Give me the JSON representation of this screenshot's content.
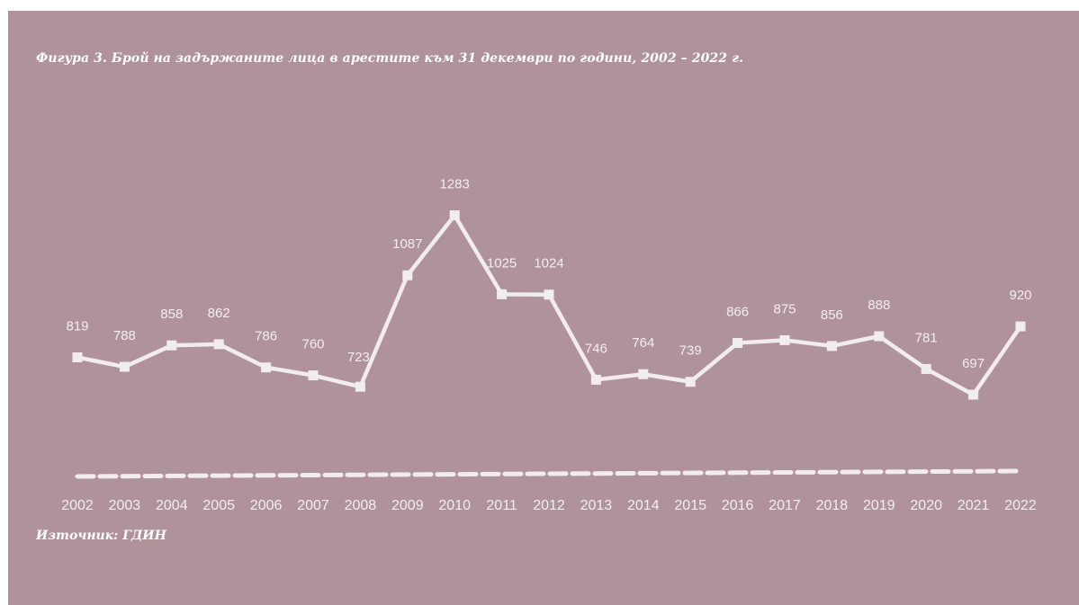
{
  "title": "Фигура 3. Брой на задържаните лица в арестите към 31 декември по години, 2002 – 2022 г.",
  "source": "Източник: ГДИН",
  "colors": {
    "background": "#b0939a",
    "line": "#f2eded",
    "text": "#ffffff"
  },
  "chart_data": {
    "type": "line",
    "title": "Фигура 3. Брой на задържаните лица в арестите към 31 декември по години, 2002 – 2022 г.",
    "xlabel": "",
    "ylabel": "",
    "categories": [
      "2002",
      "2003",
      "2004",
      "2005",
      "2006",
      "2007",
      "2008",
      "2009",
      "2010",
      "2011",
      "2012",
      "2013",
      "2014",
      "2015",
      "2016",
      "2017",
      "2018",
      "2019",
      "2020",
      "2021",
      "2022"
    ],
    "series": [
      {
        "values": [
          819,
          788,
          858,
          862,
          786,
          760,
          723,
          1087,
          1283,
          1025,
          1024,
          746,
          764,
          739,
          866,
          875,
          856,
          888,
          781,
          697,
          920
        ],
        "style": "solid",
        "marker": "square"
      },
      {
        "values": [
          0,
          0,
          0,
          0,
          0,
          0,
          0,
          0,
          0,
          0,
          0,
          0,
          0,
          0,
          0,
          0,
          0,
          0,
          0,
          0,
          0
        ],
        "style": "dashed"
      }
    ],
    "data_labels": [
      "819",
      "788",
      "858",
      "862",
      "786",
      "760",
      "723",
      "1087",
      "1283",
      "1025",
      "1024",
      "746",
      "764",
      "739",
      "866",
      "875",
      "856",
      "888",
      "781",
      "697",
      "920"
    ],
    "grid": false,
    "legend": "none"
  }
}
